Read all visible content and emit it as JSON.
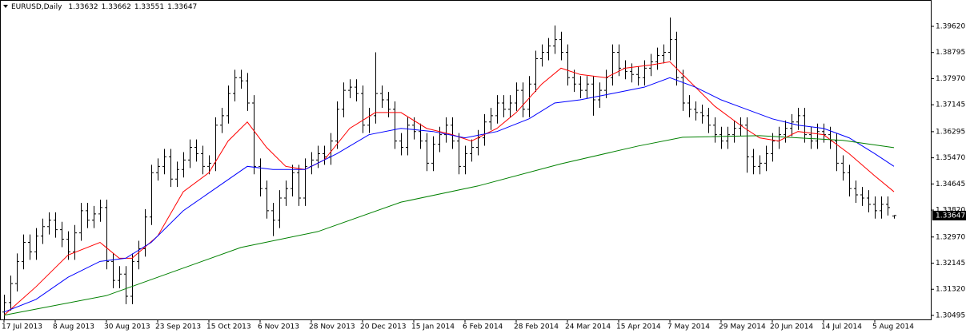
{
  "chart_data": {
    "type": "ohlc",
    "title": "EURUSD,Daily",
    "color": "#000000",
    "xlim": [
      -0.625,
      144.75
    ],
    "ylim": [
      1.30368,
      1.40452
    ],
    "yticks": [
      {
        "value": 1.3962,
        "label": "1.39620"
      },
      {
        "value": 1.38795,
        "label": "1.38795"
      },
      {
        "value": 1.3797,
        "label": "1.37970"
      },
      {
        "value": 1.37145,
        "label": "1.37145"
      },
      {
        "value": 1.36295,
        "label": "1.36295"
      },
      {
        "value": 1.3547,
        "label": "1.35470"
      },
      {
        "value": 1.34645,
        "label": "1.34645"
      },
      {
        "value": 1.3382,
        "label": "1.33820"
      },
      {
        "value": 1.3297,
        "label": "1.32970"
      },
      {
        "value": 1.32145,
        "label": "1.32145"
      },
      {
        "value": 1.3132,
        "label": "1.31320"
      },
      {
        "value": 1.30495,
        "label": "1.30495"
      }
    ],
    "xticks": [
      {
        "value": 0,
        "label": "17 Jul 2013"
      },
      {
        "value": 8,
        "label": "8 Aug 2013"
      },
      {
        "value": 16,
        "label": "30 Aug 2013"
      },
      {
        "value": 24,
        "label": "23 Sep 2013"
      },
      {
        "value": 32,
        "label": "15 Oct 2013"
      },
      {
        "value": 40,
        "label": "6 Nov 2013"
      },
      {
        "value": 48,
        "label": "28 Nov 2013"
      },
      {
        "value": 56,
        "label": "20 Dec 2013"
      },
      {
        "value": 64,
        "label": "15 Jan 2014"
      },
      {
        "value": 72,
        "label": "6 Feb 2014"
      },
      {
        "value": 80,
        "label": "28 Feb 2014"
      },
      {
        "value": 88,
        "label": "24 Mar 2014"
      },
      {
        "value": 96,
        "label": "15 Apr 2014"
      },
      {
        "value": 104,
        "label": "7 May 2014"
      },
      {
        "value": 112,
        "label": "29 May 2014"
      },
      {
        "value": 120,
        "label": "20 Jun 2014"
      },
      {
        "value": 128,
        "label": "14 Jul 2014"
      },
      {
        "value": 136,
        "label": "5 Aug 2014"
      }
    ],
    "x": [
      0,
      1,
      2,
      3,
      4,
      5,
      6,
      7,
      8,
      9,
      10,
      11,
      12,
      13,
      14,
      15,
      16,
      17,
      18,
      19,
      20,
      21,
      22,
      23,
      24,
      25,
      26,
      27,
      28,
      29,
      30,
      31,
      32,
      33,
      34,
      35,
      36,
      37,
      38,
      39,
      40,
      41,
      42,
      43,
      44,
      45,
      46,
      47,
      48,
      49,
      50,
      51,
      52,
      53,
      54,
      55,
      56,
      57,
      58,
      59,
      60,
      61,
      62,
      63,
      64,
      65,
      66,
      67,
      68,
      69,
      70,
      71,
      72,
      73,
      74,
      75,
      76,
      77,
      78,
      79,
      80,
      81,
      82,
      83,
      84,
      85,
      86,
      87,
      88,
      89,
      90,
      91,
      92,
      93,
      94,
      95,
      96,
      97,
      98,
      99,
      100,
      101,
      102,
      103,
      104,
      105,
      106,
      107,
      108,
      109,
      110,
      111,
      112,
      113,
      114,
      115,
      116,
      117,
      118,
      119,
      120,
      121,
      122,
      123,
      124,
      125,
      126,
      127,
      128,
      129,
      130,
      131,
      132,
      133,
      134,
      135,
      136,
      137,
      138,
      139
    ],
    "open": [
      1.306,
      1.309,
      1.315,
      1.322,
      1.328,
      1.325,
      1.33,
      1.333,
      1.335,
      1.332,
      1.329,
      1.325,
      1.331,
      1.338,
      1.335,
      1.337,
      1.339,
      1.322,
      1.316,
      1.318,
      1.311,
      1.322,
      1.326,
      1.336,
      1.35,
      1.352,
      1.355,
      1.348,
      1.351,
      1.354,
      1.358,
      1.356,
      1.352,
      1.353,
      1.365,
      1.368,
      1.375,
      1.38,
      1.379,
      1.372,
      1.352,
      1.345,
      1.338,
      1.335,
      1.342,
      1.345,
      1.35,
      1.342,
      1.352,
      1.354,
      1.356,
      1.355,
      1.36,
      1.37,
      1.376,
      1.377,
      1.375,
      1.365,
      1.368,
      1.375,
      1.373,
      1.37,
      1.36,
      1.358,
      1.365,
      1.363,
      1.36,
      1.353,
      1.359,
      1.362,
      1.365,
      1.36,
      1.352,
      1.356,
      1.358,
      1.361,
      1.366,
      1.368,
      1.372,
      1.37,
      1.372,
      1.376,
      1.37,
      1.378,
      1.386,
      1.388,
      1.39,
      1.392,
      1.388,
      1.38,
      1.378,
      1.376,
      1.378,
      1.373,
      1.376,
      1.38,
      1.388,
      1.383,
      1.382,
      1.381,
      1.38,
      1.383,
      1.385,
      1.387,
      1.388,
      1.392,
      1.38,
      1.372,
      1.37,
      1.369,
      1.368,
      1.365,
      1.362,
      1.36,
      1.362,
      1.364,
      1.365,
      1.355,
      1.352,
      1.353,
      1.356,
      1.36,
      1.362,
      1.364,
      1.366,
      1.368,
      1.362,
      1.36,
      1.363,
      1.362,
      1.36,
      1.353,
      1.35,
      1.345,
      1.343,
      1.342,
      1.34,
      1.338,
      1.34,
      1.33632
    ],
    "high": [
      1.3115,
      1.3175,
      1.3245,
      1.3305,
      1.3305,
      1.3325,
      1.3355,
      1.3375,
      1.3375,
      1.3345,
      1.3315,
      1.3335,
      1.3405,
      1.3405,
      1.3395,
      1.3415,
      1.3415,
      1.3245,
      1.3205,
      1.3205,
      1.3245,
      1.3285,
      1.3385,
      1.3525,
      1.3545,
      1.3575,
      1.3575,
      1.3535,
      1.3565,
      1.3605,
      1.3605,
      1.3585,
      1.3555,
      1.3675,
      1.3705,
      1.3775,
      1.3825,
      1.3825,
      1.3815,
      1.3745,
      1.3545,
      1.3475,
      1.3405,
      1.3445,
      1.3475,
      1.3525,
      1.3525,
      1.3545,
      1.3565,
      1.3585,
      1.3585,
      1.3625,
      1.3725,
      1.3785,
      1.3795,
      1.3795,
      1.3775,
      1.3705,
      1.388,
      1.3775,
      1.3755,
      1.3725,
      1.3625,
      1.3675,
      1.3675,
      1.3655,
      1.3625,
      1.3615,
      1.3645,
      1.3675,
      1.3675,
      1.3625,
      1.3585,
      1.3605,
      1.3635,
      1.3685,
      1.3705,
      1.3745,
      1.3745,
      1.3745,
      1.3785,
      1.3785,
      1.3805,
      1.3885,
      1.3905,
      1.3925,
      1.3965,
      1.3945,
      1.3905,
      1.3825,
      1.3805,
      1.3805,
      1.3805,
      1.3785,
      1.3825,
      1.3905,
      1.3905,
      1.3855,
      1.3845,
      1.3835,
      1.3855,
      1.3875,
      1.3895,
      1.3905,
      1.399,
      1.3945,
      1.3825,
      1.3745,
      1.3725,
      1.3715,
      1.3705,
      1.3675,
      1.3645,
      1.3645,
      1.3665,
      1.3675,
      1.3675,
      1.3575,
      1.3555,
      1.3585,
      1.3625,
      1.3645,
      1.3665,
      1.3685,
      1.3705,
      1.3705,
      1.3645,
      1.3655,
      1.3655,
      1.3645,
      1.3625,
      1.3555,
      1.3525,
      1.3475,
      1.3455,
      1.3445,
      1.3425,
      1.3425,
      1.3425,
      1.33662
    ],
    "low": [
      1.3035,
      1.3065,
      1.3125,
      1.3195,
      1.3225,
      1.3225,
      1.3275,
      1.3305,
      1.3295,
      1.3265,
      1.3225,
      1.3225,
      1.3285,
      1.3325,
      1.3325,
      1.3345,
      1.3195,
      1.3135,
      1.3135,
      1.3085,
      1.3085,
      1.3195,
      1.3235,
      1.3335,
      1.3475,
      1.3495,
      1.3455,
      1.3455,
      1.3485,
      1.3515,
      1.3535,
      1.3495,
      1.3495,
      1.3505,
      1.3625,
      1.3655,
      1.3725,
      1.3765,
      1.3695,
      1.3495,
      1.3425,
      1.3355,
      1.33,
      1.3325,
      1.3395,
      1.3425,
      1.3395,
      1.3395,
      1.3495,
      1.3515,
      1.3525,
      1.3525,
      1.3575,
      1.3675,
      1.3735,
      1.3725,
      1.3625,
      1.3625,
      1.3655,
      1.3705,
      1.3675,
      1.3575,
      1.3555,
      1.3555,
      1.3605,
      1.3575,
      1.3505,
      1.3505,
      1.3565,
      1.3595,
      1.3575,
      1.3495,
      1.3495,
      1.3535,
      1.3555,
      1.3585,
      1.3635,
      1.3655,
      1.3675,
      1.3675,
      1.3695,
      1.3675,
      1.3675,
      1.3755,
      1.3835,
      1.3855,
      1.3875,
      1.3855,
      1.3775,
      1.3755,
      1.3735,
      1.3735,
      1.368,
      1.3705,
      1.3735,
      1.3775,
      1.3805,
      1.3795,
      1.3785,
      1.3775,
      1.3775,
      1.3805,
      1.3825,
      1.3845,
      1.3855,
      1.3775,
      1.3695,
      1.3675,
      1.3665,
      1.3655,
      1.3625,
      1.3595,
      1.3575,
      1.3575,
      1.3595,
      1.3615,
      1.35,
      1.3495,
      1.3495,
      1.3505,
      1.3535,
      1.3575,
      1.3595,
      1.3615,
      1.3635,
      1.3595,
      1.3575,
      1.3575,
      1.3595,
      1.3575,
      1.3505,
      1.3475,
      1.3425,
      1.3405,
      1.3395,
      1.3375,
      1.3355,
      1.3355,
      1.3365,
      1.33551
    ],
    "close": [
      1.309,
      1.315,
      1.322,
      1.328,
      1.325,
      1.33,
      1.333,
      1.335,
      1.332,
      1.329,
      1.325,
      1.331,
      1.338,
      1.335,
      1.337,
      1.339,
      1.322,
      1.316,
      1.318,
      1.311,
      1.322,
      1.326,
      1.336,
      1.35,
      1.352,
      1.355,
      1.348,
      1.351,
      1.354,
      1.358,
      1.356,
      1.352,
      1.353,
      1.365,
      1.368,
      1.375,
      1.38,
      1.379,
      1.372,
      1.352,
      1.345,
      1.338,
      1.335,
      1.342,
      1.345,
      1.35,
      1.342,
      1.352,
      1.354,
      1.356,
      1.355,
      1.36,
      1.37,
      1.376,
      1.377,
      1.375,
      1.365,
      1.368,
      1.375,
      1.373,
      1.37,
      1.36,
      1.358,
      1.365,
      1.363,
      1.36,
      1.353,
      1.359,
      1.362,
      1.365,
      1.36,
      1.352,
      1.356,
      1.358,
      1.361,
      1.366,
      1.368,
      1.372,
      1.37,
      1.372,
      1.376,
      1.37,
      1.378,
      1.386,
      1.388,
      1.39,
      1.392,
      1.388,
      1.38,
      1.378,
      1.376,
      1.378,
      1.373,
      1.376,
      1.38,
      1.388,
      1.383,
      1.382,
      1.381,
      1.38,
      1.383,
      1.385,
      1.387,
      1.388,
      1.392,
      1.38,
      1.372,
      1.37,
      1.369,
      1.368,
      1.365,
      1.362,
      1.36,
      1.362,
      1.364,
      1.365,
      1.355,
      1.352,
      1.353,
      1.356,
      1.36,
      1.362,
      1.364,
      1.366,
      1.368,
      1.362,
      1.36,
      1.363,
      1.362,
      1.36,
      1.353,
      1.35,
      1.345,
      1.343,
      1.342,
      1.34,
      1.338,
      1.34,
      1.339,
      1.33647
    ],
    "series": [
      {
        "color": "#ff0000",
        "x": [
          0,
          5,
          10,
          15,
          18,
          20,
          24,
          28,
          32,
          35,
          38,
          41,
          44,
          47,
          50,
          54,
          58,
          62,
          66,
          70,
          73,
          77,
          80,
          84,
          87,
          90,
          94,
          97,
          101,
          104,
          107,
          111,
          115,
          118,
          121,
          124,
          128,
          132,
          136,
          139
        ],
        "values": [
          1.305,
          1.314,
          1.324,
          1.328,
          1.323,
          1.323,
          1.33,
          1.344,
          1.35,
          1.36,
          1.366,
          1.358,
          1.352,
          1.351,
          1.354,
          1.364,
          1.369,
          1.369,
          1.364,
          1.362,
          1.36,
          1.364,
          1.369,
          1.378,
          1.383,
          1.381,
          1.38,
          1.383,
          1.384,
          1.385,
          1.379,
          1.371,
          1.365,
          1.361,
          1.36,
          1.363,
          1.362,
          1.356,
          1.349,
          1.344
        ]
      },
      {
        "color": "#0000ff",
        "x": [
          0,
          5,
          10,
          15,
          19,
          23,
          28,
          33,
          38,
          42,
          47,
          52,
          57,
          62,
          67,
          72,
          77,
          82,
          86,
          90,
          95,
          100,
          104,
          108,
          112,
          116,
          120,
          124,
          128,
          132,
          136,
          139
        ],
        "values": [
          1.306,
          1.31,
          1.317,
          1.322,
          1.323,
          1.328,
          1.338,
          1.345,
          1.352,
          1.351,
          1.351,
          1.356,
          1.362,
          1.364,
          1.363,
          1.361,
          1.363,
          1.367,
          1.372,
          1.373,
          1.375,
          1.377,
          1.38,
          1.377,
          1.373,
          1.37,
          1.367,
          1.365,
          1.364,
          1.361,
          1.356,
          1.352
        ]
      },
      {
        "color": "#008000",
        "x": [
          0,
          16,
          37,
          49,
          62,
          74,
          87,
          99,
          106,
          118,
          131,
          139
        ],
        "values": [
          1.305,
          1.3112,
          1.3264,
          1.3314,
          1.3407,
          1.3458,
          1.3528,
          1.3584,
          1.3612,
          1.3617,
          1.3602,
          1.3579
        ]
      }
    ]
  }
}
